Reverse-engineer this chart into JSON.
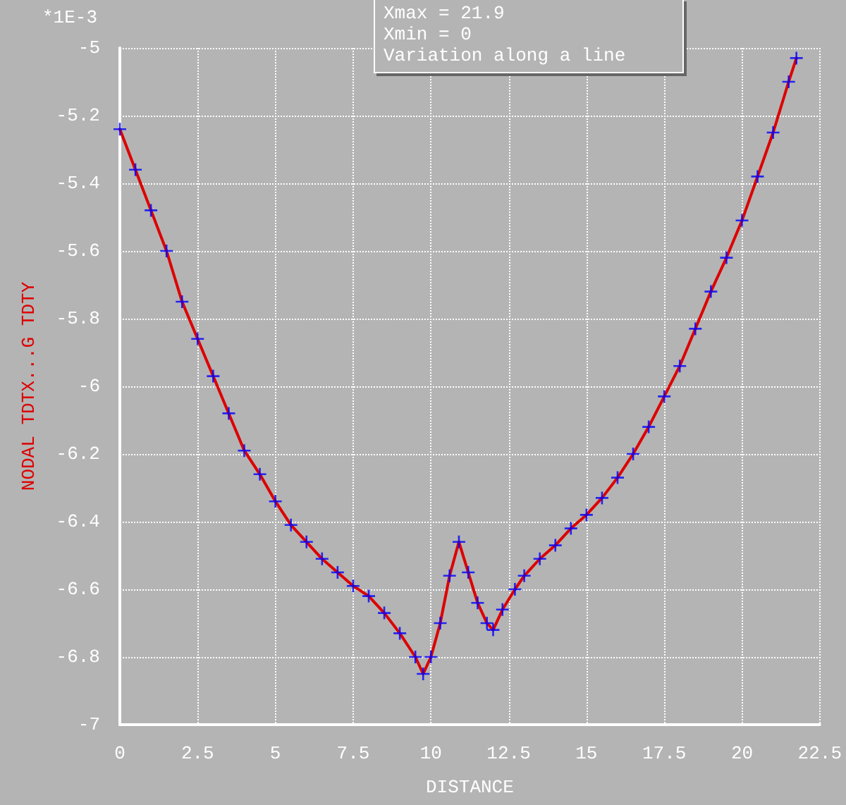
{
  "chart_data": {
    "type": "line",
    "xlabel": "DISTANCE",
    "ylabel": "NODAL TDTX...G TDTY",
    "annotations": [
      "*1E-3",
      "Xmax = 21.9",
      "Xmin = 0",
      "Variation along a line"
    ],
    "x": [
      0,
      0.5,
      1,
      1.5,
      2,
      2.5,
      3,
      3.5,
      4,
      4.5,
      5,
      5.5,
      6,
      6.5,
      7,
      7.5,
      8,
      8.5,
      9,
      9.5,
      9.75,
      10,
      10.3,
      10.6,
      10.9,
      11.2,
      11.5,
      11.8,
      12,
      12.3,
      12.7,
      13,
      13.5,
      14,
      14.5,
      15,
      15.5,
      16,
      16.5,
      17,
      17.5,
      18,
      18.5,
      19,
      19.5,
      20,
      20.5,
      21,
      21.5,
      21.75
    ],
    "series": [
      {
        "color": "#dd0000",
        "line_style": "solid",
        "marker": "none",
        "values": [
          -5.24,
          -5.36,
          -5.48,
          -5.6,
          -5.75,
          -5.86,
          -5.97,
          -6.08,
          -6.19,
          -6.26,
          -6.34,
          -6.41,
          -6.46,
          -6.51,
          -6.55,
          -6.59,
          -6.62,
          -6.67,
          -6.73,
          -6.8,
          -6.85,
          -6.8,
          -6.7,
          -6.56,
          -6.46,
          -6.55,
          -6.64,
          -6.7,
          -6.72,
          -6.66,
          -6.6,
          -6.56,
          -6.51,
          -6.47,
          -6.42,
          -6.38,
          -6.33,
          -6.27,
          -6.2,
          -6.12,
          -6.03,
          -5.94,
          -5.83,
          -5.72,
          -5.62,
          -5.51,
          -5.38,
          -5.25,
          -5.1,
          -5.03
        ]
      },
      {
        "type": "scatter",
        "color": "#0000ff",
        "marker": "cross",
        "values": [
          -5.24,
          -5.36,
          -5.48,
          -5.6,
          -5.75,
          -5.86,
          -5.97,
          -6.08,
          -6.19,
          -6.26,
          -6.34,
          -6.41,
          -6.46,
          -6.51,
          -6.55,
          -6.59,
          -6.62,
          -6.67,
          -6.73,
          -6.8,
          -6.85,
          -6.8,
          -6.7,
          -6.56,
          -6.46,
          -6.55,
          -6.64,
          -6.7,
          -6.72,
          -6.66,
          -6.6,
          -6.56,
          -6.51,
          -6.47,
          -6.42,
          -6.38,
          -6.33,
          -6.27,
          -6.2,
          -6.12,
          -6.03,
          -5.94,
          -5.83,
          -5.72,
          -5.62,
          -5.51,
          -5.38,
          -5.25,
          -5.1,
          -5.03
        ]
      }
    ],
    "xlim": [
      0,
      22.5
    ],
    "xticks": [
      0,
      2.5,
      5,
      7.5,
      10,
      12.5,
      15,
      17.5,
      20,
      22.5
    ],
    "ylim": [
      -7,
      -5
    ],
    "yticks": [
      -7,
      -6.8,
      -6.6,
      -6.4,
      -6.2,
      -6,
      -5.8,
      -5.6,
      -5.4,
      -5.2,
      -5
    ],
    "grid": true
  }
}
